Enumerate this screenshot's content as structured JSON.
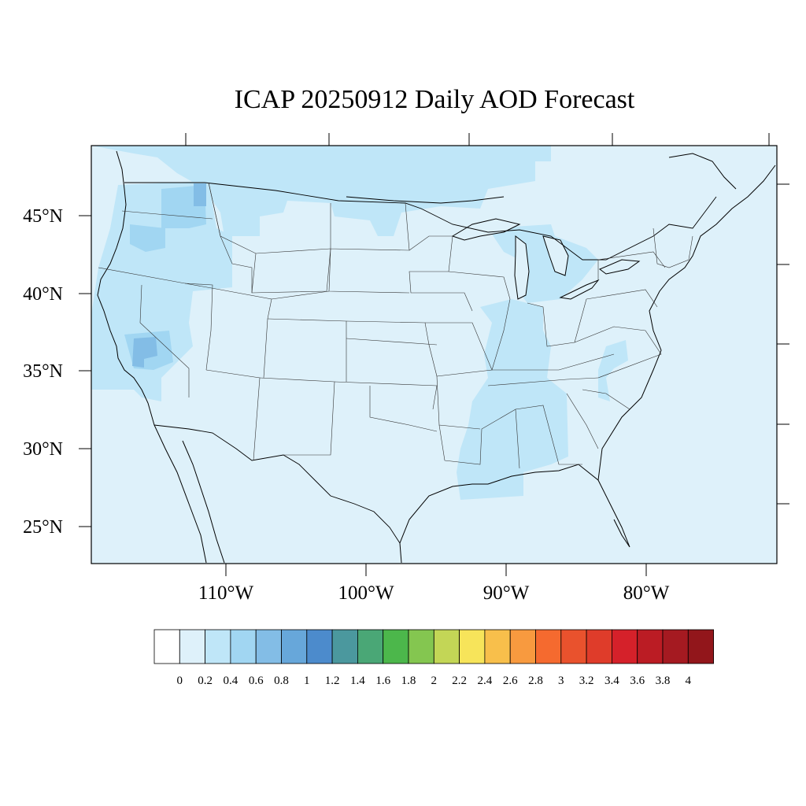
{
  "title": "ICAP 20250912 Daily AOD Forecast",
  "background_color": "#def1fa",
  "lat_labels": [
    "45°N",
    "40°N",
    "35°N",
    "30°N",
    "25°N"
  ],
  "lon_labels": [
    "110°W",
    "100°W",
    "90°W",
    "80°W"
  ],
  "colorbar": {
    "labels": [
      "0",
      "0.2",
      "0.4",
      "0.6",
      "0.8",
      "1",
      "1.2",
      "1.4",
      "1.6",
      "1.8",
      "2",
      "2.2",
      "2.4",
      "2.6",
      "2.8",
      "3",
      "3.2",
      "3.4",
      "3.6",
      "3.8",
      "4"
    ],
    "colors": [
      "#ffffff",
      "#def1fa",
      "#bfe6f8",
      "#a1d6f2",
      "#83bde6",
      "#67a7da",
      "#4c8bcc",
      "#4b989e",
      "#4aa776",
      "#4cb74b",
      "#84c650",
      "#c3d656",
      "#f7e45a",
      "#f8bf4b",
      "#f89a3f",
      "#f56a2f",
      "#e9522d",
      "#df3c2a",
      "#d5212a",
      "#bb1c24",
      "#a51a21",
      "#92161b"
    ]
  },
  "aod_cells": [
    {
      "area": "southern Canada belt",
      "aod_bin": "0.2-0.4"
    },
    {
      "area": "Washington / Oregon",
      "aod_bin": "0.4-0.6"
    },
    {
      "area": "northern Idaho",
      "aod_bin": "0.6-0.8"
    },
    {
      "area": "California / Nevada",
      "aod_bin": "0.2-0.4"
    },
    {
      "area": "southern Nevada / California border",
      "aod_bin": "0.6-0.8"
    },
    {
      "area": "Mississippi / Alabama / Tennessee valley",
      "aod_bin": "0.2-0.4"
    },
    {
      "area": "Ohio / Great Lakes",
      "aod_bin": "0.2-0.4"
    }
  ]
}
